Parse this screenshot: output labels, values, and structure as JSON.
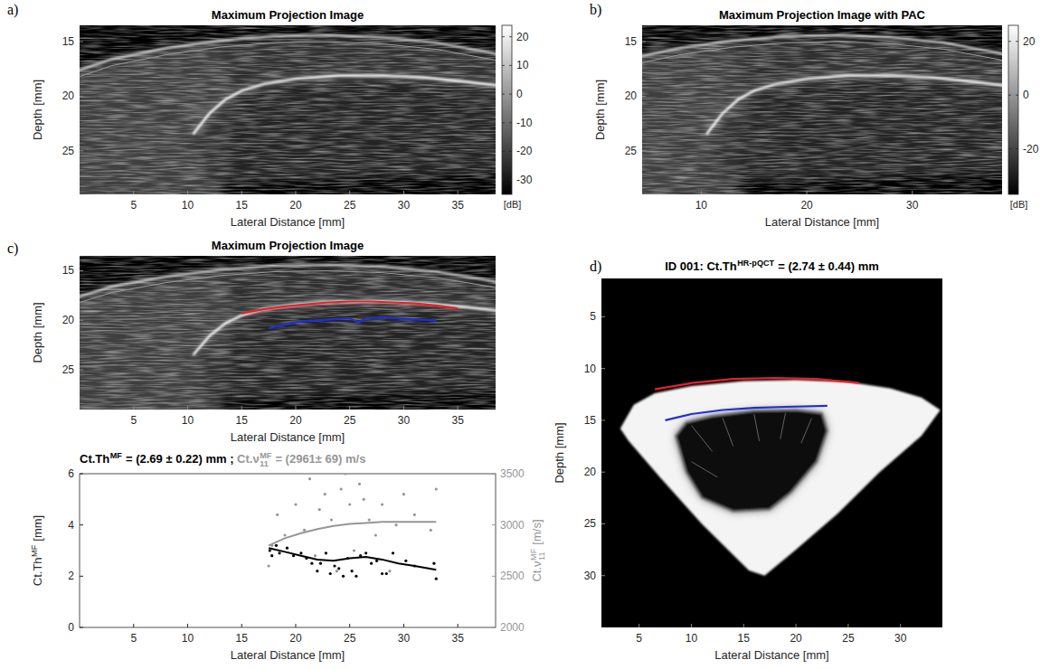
{
  "chart_data": [
    {
      "type": "ultrasound",
      "panel_label": "a)",
      "title": [
        {
          "text": "Maximum Projection Image"
        }
      ],
      "xlabel": [
        {
          "text": "Lateral Distance [mm]"
        }
      ],
      "ylabel": [
        {
          "text": "Depth [mm]"
        }
      ],
      "xlim": [
        0,
        38.5
      ],
      "xticks": [
        5,
        10,
        15,
        20,
        25,
        30,
        35
      ],
      "ylim": [
        13.5,
        29
      ],
      "yticks": [
        15,
        20,
        25
      ],
      "colorbar": {
        "range": [
          -35,
          24
        ],
        "ticks": [
          -30,
          -20,
          -10,
          0,
          10,
          20
        ],
        "label": "[dB]"
      }
    },
    {
      "type": "ultrasound",
      "panel_label": "b)",
      "title": [
        {
          "text": "Maximum Projection Image with PAC"
        }
      ],
      "xlabel": [
        {
          "text": "Lateral Distance [mm]"
        }
      ],
      "ylabel": [
        {
          "text": "Depth [mm]"
        }
      ],
      "xlim": [
        4.4,
        38.5
      ],
      "xticks": [
        10,
        20,
        30
      ],
      "ylim": [
        13.5,
        29
      ],
      "yticks": [
        15,
        20,
        25
      ],
      "colorbar": {
        "range": [
          -37,
          26
        ],
        "ticks": [
          -20,
          0,
          20
        ],
        "label": "[dB]"
      }
    },
    {
      "type": "ultrasound",
      "panel_label": "c)",
      "title": [
        {
          "text": "Maximum Projection Image"
        }
      ],
      "xlabel": [
        {
          "text": "Lateral Distance [mm]"
        }
      ],
      "ylabel": [
        {
          "text": "Depth [mm]"
        }
      ],
      "xlim": [
        0,
        38.5
      ],
      "xticks": [
        5,
        10,
        15,
        20,
        25,
        30,
        35
      ],
      "ylim": [
        13.5,
        29
      ],
      "yticks": [
        15,
        20,
        25
      ],
      "series": [
        {
          "color": "#e8202a",
          "x": [
            15,
            17,
            19,
            21,
            23,
            25,
            27,
            29,
            31,
            33,
            35
          ],
          "values": [
            19.3,
            18.9,
            18.6,
            18.4,
            18.2,
            18.1,
            18.1,
            18.2,
            18.3,
            18.5,
            18.8
          ]
        },
        {
          "color": "#1f2fd6",
          "x": [
            17.5,
            19,
            20.5,
            22,
            23.5,
            25,
            25.8,
            26.5,
            28,
            29.5,
            31,
            33
          ],
          "values": [
            20.8,
            20.4,
            20.1,
            20.0,
            19.9,
            19.8,
            20.2,
            19.8,
            19.7,
            19.8,
            19.9,
            20.0
          ]
        }
      ]
    },
    {
      "type": "line",
      "title": [
        [
          {
            "text": "Ct.Th",
            "sup": "MF"
          },
          {
            "text": " = (2.69 ± 0.22) mm ; "
          }
        ],
        [
          {
            "text": "Ct.ν",
            "sub": "11",
            "sup": "MF"
          },
          {
            "text": " = (2961± 69) m/s"
          }
        ]
      ],
      "xlabel": [
        {
          "text": "Lateral Distance [mm]"
        }
      ],
      "ylabel": [
        {
          "text": "Ct.Th",
          "sup": "MF"
        },
        {
          "text": " [mm]"
        }
      ],
      "y2label": [
        {
          "text": "Ct.ν",
          "sub": "11",
          "sup": "MF"
        },
        {
          "text": " [m/s]"
        }
      ],
      "xlim": [
        0,
        38.5
      ],
      "xticks": [
        5,
        10,
        15,
        20,
        25,
        30,
        35
      ],
      "ylim": [
        0,
        6
      ],
      "yticks": [
        0,
        2,
        4,
        6
      ],
      "y2lim": [
        2000,
        3500
      ],
      "y2ticks": [
        2000,
        2500,
        3000,
        3500
      ],
      "series": [
        {
          "type": "scatter",
          "marker": "dot",
          "color": "#000000",
          "x": [
            17.6,
            17.8,
            18.2,
            18.5,
            19.2,
            19.8,
            20.5,
            21.0,
            21.5,
            22.0,
            22.3,
            22.8,
            23.2,
            23.6,
            24.0,
            24.4,
            24.8,
            25.2,
            25.6,
            26.0,
            26.5,
            27.0,
            27.5,
            28.0,
            28.4,
            29.0,
            30.2,
            31.0,
            32.8,
            33.0
          ],
          "values": [
            3.0,
            2.8,
            3.2,
            2.9,
            3.1,
            2.8,
            2.9,
            2.7,
            2.5,
            2.2,
            2.5,
            2.9,
            2.1,
            2.4,
            2.3,
            2.0,
            2.7,
            2.2,
            2.0,
            2.8,
            2.9,
            2.5,
            2.6,
            2.1,
            2.1,
            2.9,
            2.6,
            2.4,
            2.5,
            1.9
          ]
        },
        {
          "type": "line",
          "line_style": "solid",
          "color": "#000000",
          "x": [
            17.5,
            19,
            20.5,
            22,
            23.5,
            25,
            26.5,
            28,
            29.5,
            31,
            33
          ],
          "values": [
            3.1,
            2.95,
            2.8,
            2.65,
            2.6,
            2.7,
            2.75,
            2.65,
            2.5,
            2.4,
            2.25
          ]
        },
        {
          "type": "scatter",
          "marker": "dot",
          "color": "#969696",
          "axis": "y2",
          "x": [
            17.5,
            17.8,
            18.3,
            19.0,
            20.0,
            20.8,
            21.3,
            21.8,
            22.2,
            22.7,
            23.3,
            23.8,
            24.2,
            24.6,
            25.0,
            25.4,
            25.9,
            26.3,
            26.8,
            27.4,
            28.0,
            28.7,
            29.3,
            30.0,
            31.0,
            32.5,
            33.0
          ],
          "values": [
            2600,
            2800,
            3100,
            2900,
            3200,
            2950,
            3450,
            2700,
            3150,
            3300,
            3050,
            2550,
            3350,
            3500,
            3200,
            2750,
            3400,
            3250,
            3050,
            2900,
            3200,
            2550,
            3000,
            3300,
            3100,
            2950,
            3350
          ]
        },
        {
          "type": "line",
          "line_style": "solid",
          "color": "#969696",
          "axis": "y2",
          "x": [
            17.5,
            19,
            20.5,
            22,
            23.5,
            25,
            26.5,
            28,
            29.5,
            31,
            33
          ],
          "values": [
            2800,
            2870,
            2920,
            2960,
            2990,
            3010,
            3020,
            3030,
            3030,
            3030,
            3030
          ]
        }
      ]
    },
    {
      "type": "ct",
      "panel_label": "d)",
      "title": [
        {
          "text": "ID 001: Ct.Th",
          "sup": "HR-pQCT"
        },
        {
          "text": " = (2.74 ± 0.44) mm"
        }
      ],
      "xlabel": [
        {
          "text": "Lateral Distance [mm]"
        }
      ],
      "ylabel": [
        {
          "text": "Depth [mm]"
        }
      ],
      "xlim": [
        1.4,
        34.0
      ],
      "xticks": [
        5,
        10,
        15,
        20,
        25,
        30
      ],
      "ylim": [
        1.3,
        35.0
      ],
      "yticks": [
        5,
        10,
        15,
        20,
        25,
        30
      ],
      "series": [
        {
          "color": "#e8202a",
          "x": [
            6.5,
            10,
            14,
            18,
            22,
            26
          ],
          "values": [
            12.0,
            11.4,
            11.0,
            10.9,
            11.0,
            11.4
          ]
        },
        {
          "color": "#1f2fd6",
          "x": [
            7.5,
            10,
            13,
            16,
            19,
            23
          ],
          "values": [
            15.0,
            14.4,
            14.0,
            13.8,
            13.7,
            13.6
          ]
        }
      ]
    }
  ]
}
